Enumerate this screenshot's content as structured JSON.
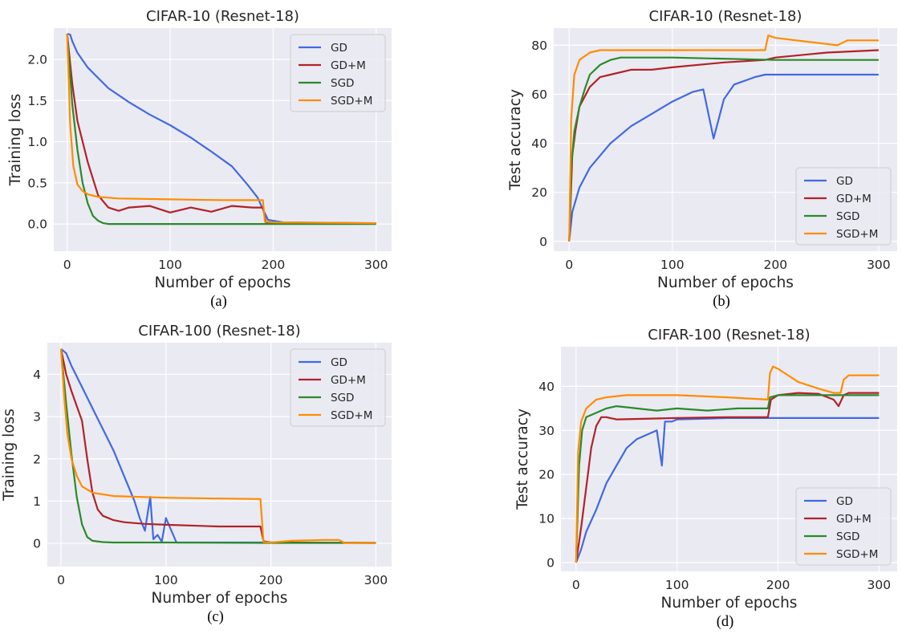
{
  "colors": {
    "GD": "#4169e1",
    "GD+M": "#b22228",
    "SGD": "#2a8a2a",
    "SGD+M": "#ff8c00",
    "background": "#eaeaf2",
    "grid": "#ffffff"
  },
  "chart_data": [
    {
      "id": "a",
      "type": "line",
      "title": "CIFAR-10 (Resnet-18)",
      "xlabel": "Number of epochs",
      "ylabel": "Training loss",
      "caption": "(a)",
      "xlim": [
        -13,
        315
      ],
      "ylim": [
        -0.33,
        2.38
      ],
      "xticks": [
        0,
        100,
        200,
        300
      ],
      "yticks": [
        0.0,
        0.5,
        1.0,
        1.5,
        2.0
      ],
      "ytick_labels": [
        "0.0",
        "0.5",
        "1.0",
        "1.5",
        "2.0"
      ],
      "grid": true,
      "legend_loc": "top-right",
      "series": [
        {
          "name": "GD",
          "x": [
            0,
            3,
            5,
            10,
            20,
            40,
            60,
            80,
            100,
            120,
            140,
            160,
            175,
            185,
            190,
            195,
            210,
            300
          ],
          "y": [
            2.31,
            2.3,
            2.22,
            2.08,
            1.9,
            1.65,
            1.48,
            1.33,
            1.2,
            1.05,
            0.88,
            0.7,
            0.48,
            0.32,
            0.18,
            0.05,
            0.02,
            0.01
          ]
        },
        {
          "name": "GD+M",
          "x": [
            0,
            5,
            10,
            20,
            30,
            40,
            50,
            60,
            80,
            100,
            120,
            140,
            160,
            180,
            190,
            193,
            200,
            300
          ],
          "y": [
            2.31,
            1.7,
            1.25,
            0.75,
            0.35,
            0.2,
            0.16,
            0.2,
            0.22,
            0.14,
            0.2,
            0.15,
            0.22,
            0.2,
            0.2,
            0.02,
            0.01,
            0.01
          ]
        },
        {
          "name": "SGD",
          "x": [
            0,
            5,
            10,
            15,
            20,
            25,
            30,
            35,
            40,
            50,
            100,
            200,
            300
          ],
          "y": [
            2.31,
            1.45,
            0.9,
            0.5,
            0.25,
            0.1,
            0.04,
            0.01,
            0.0,
            0.0,
            0.0,
            0.0,
            0.0
          ]
        },
        {
          "name": "SGD+M",
          "x": [
            0,
            3,
            6,
            10,
            15,
            20,
            30,
            50,
            100,
            150,
            190,
            192,
            200,
            300
          ],
          "y": [
            2.31,
            1.2,
            0.7,
            0.48,
            0.4,
            0.36,
            0.33,
            0.31,
            0.3,
            0.29,
            0.29,
            0.03,
            0.02,
            0.01
          ]
        }
      ]
    },
    {
      "id": "b",
      "type": "line",
      "title": "CIFAR-10 (Resnet-18)",
      "xlabel": "Number of epochs",
      "ylabel": "Test accuracy",
      "caption": "(b)",
      "xlim": [
        -15,
        318
      ],
      "ylim": [
        -4,
        87
      ],
      "xticks": [
        0,
        100,
        200,
        300
      ],
      "yticks": [
        0,
        20,
        40,
        60,
        80
      ],
      "ytick_labels": [
        "0",
        "20",
        "40",
        "60",
        "80"
      ],
      "grid": true,
      "legend_loc": "lower-right",
      "series": [
        {
          "name": "GD",
          "x": [
            0,
            3,
            10,
            20,
            40,
            60,
            80,
            100,
            120,
            130,
            140,
            150,
            160,
            180,
            190,
            200,
            300
          ],
          "y": [
            0,
            12,
            22,
            30,
            40,
            47,
            52,
            57,
            61,
            62,
            42,
            58,
            64,
            67,
            68,
            68,
            68
          ]
        },
        {
          "name": "GD+M",
          "x": [
            0,
            3,
            6,
            10,
            20,
            30,
            40,
            60,
            80,
            100,
            150,
            190,
            200,
            250,
            300
          ],
          "y": [
            0,
            35,
            45,
            55,
            63,
            67,
            68,
            70,
            70,
            71,
            73,
            74,
            75,
            77,
            78
          ]
        },
        {
          "name": "SGD",
          "x": [
            0,
            2,
            5,
            10,
            15,
            20,
            30,
            40,
            50,
            100,
            200,
            300
          ],
          "y": [
            0,
            30,
            45,
            55,
            62,
            68,
            72,
            74,
            75,
            75,
            74,
            74
          ]
        },
        {
          "name": "SGD+M",
          "x": [
            0,
            2,
            5,
            10,
            20,
            30,
            50,
            100,
            150,
            190,
            193,
            200,
            240,
            260,
            270,
            300
          ],
          "y": [
            0,
            50,
            68,
            74,
            77,
            78,
            78,
            78,
            78,
            78,
            84,
            83,
            81,
            80,
            82,
            82
          ]
        }
      ]
    },
    {
      "id": "c",
      "type": "line",
      "title": "CIFAR-100 (Resnet-18)",
      "xlabel": "Number of epochs",
      "ylabel": "Training loss",
      "caption": "(c)",
      "xlim": [
        -13,
        315
      ],
      "ylim": [
        -0.55,
        4.75
      ],
      "xticks": [
        0,
        100,
        200,
        300
      ],
      "yticks": [
        0,
        1,
        2,
        3,
        4
      ],
      "ytick_labels": [
        "0",
        "1",
        "2",
        "3",
        "4"
      ],
      "grid": true,
      "legend_loc": "top-right",
      "series": [
        {
          "name": "GD",
          "x": [
            0,
            5,
            10,
            20,
            30,
            40,
            50,
            60,
            70,
            75,
            80,
            85,
            88,
            92,
            96,
            100,
            110,
            200,
            300
          ],
          "y": [
            4.6,
            4.5,
            4.2,
            3.7,
            3.2,
            2.7,
            2.2,
            1.6,
            1.0,
            0.6,
            0.3,
            1.1,
            0.1,
            0.2,
            0.04,
            0.6,
            0.02,
            0.02,
            0.01
          ]
        },
        {
          "name": "GD+M",
          "x": [
            0,
            5,
            10,
            20,
            25,
            30,
            35,
            40,
            50,
            60,
            80,
            100,
            150,
            190,
            193,
            200,
            300
          ],
          "y": [
            4.6,
            4.0,
            3.6,
            2.9,
            2.0,
            1.2,
            0.8,
            0.65,
            0.55,
            0.5,
            0.46,
            0.44,
            0.4,
            0.4,
            0.05,
            0.02,
            0.01
          ]
        },
        {
          "name": "SGD",
          "x": [
            0,
            5,
            10,
            15,
            20,
            25,
            30,
            40,
            50,
            100,
            200,
            300
          ],
          "y": [
            4.6,
            3.3,
            2.1,
            1.1,
            0.45,
            0.15,
            0.06,
            0.03,
            0.02,
            0.02,
            0.01,
            0.01
          ]
        },
        {
          "name": "SGD+M",
          "x": [
            0,
            3,
            6,
            10,
            15,
            20,
            30,
            50,
            100,
            150,
            190,
            193,
            200,
            220,
            250,
            265,
            270,
            300
          ],
          "y": [
            4.6,
            3.5,
            2.6,
            2.0,
            1.6,
            1.35,
            1.2,
            1.12,
            1.08,
            1.06,
            1.05,
            0.03,
            0.02,
            0.06,
            0.08,
            0.08,
            0.01,
            0.01
          ]
        }
      ]
    },
    {
      "id": "d",
      "type": "line",
      "title": "CIFAR-100 (Resnet-18)",
      "xlabel": "Number of epochs",
      "ylabel": "Test accuracy",
      "caption": "(d)",
      "xlim": [
        -15,
        318
      ],
      "ylim": [
        -2,
        49
      ],
      "xticks": [
        0,
        100,
        200,
        300
      ],
      "yticks": [
        0,
        10,
        20,
        30,
        40
      ],
      "ytick_labels": [
        "0",
        "10",
        "20",
        "30",
        "40"
      ],
      "grid": true,
      "legend_loc": "lower-right",
      "series": [
        {
          "name": "GD",
          "x": [
            0,
            5,
            10,
            20,
            30,
            40,
            50,
            60,
            70,
            80,
            85,
            88,
            95,
            100,
            150,
            200,
            300
          ],
          "y": [
            0,
            3,
            7,
            12,
            18,
            22,
            26,
            28,
            29,
            30,
            22,
            32,
            32,
            32.5,
            32.8,
            32.8,
            32.8
          ]
        },
        {
          "name": "GD+M",
          "x": [
            0,
            5,
            10,
            15,
            20,
            25,
            30,
            40,
            100,
            150,
            190,
            193,
            200,
            220,
            240,
            255,
            260,
            265,
            270,
            300
          ],
          "y": [
            0,
            8,
            17,
            26,
            31,
            33,
            33,
            32.5,
            32.8,
            33,
            33,
            37,
            38,
            38.5,
            38.3,
            37,
            35.5,
            38,
            38.5,
            38.5
          ]
        },
        {
          "name": "SGD",
          "x": [
            0,
            3,
            6,
            10,
            20,
            30,
            40,
            60,
            80,
            100,
            130,
            160,
            190,
            192,
            200,
            250,
            300
          ],
          "y": [
            0,
            22,
            30,
            33,
            34,
            35,
            35.5,
            35,
            34.5,
            35,
            34.5,
            35,
            35,
            37.5,
            38,
            38,
            38
          ]
        },
        {
          "name": "SGD+M",
          "x": [
            0,
            2,
            5,
            10,
            20,
            30,
            50,
            100,
            150,
            190,
            192,
            195,
            200,
            220,
            240,
            255,
            262,
            265,
            270,
            300
          ],
          "y": [
            0,
            25,
            32,
            35,
            37,
            37.5,
            38,
            38,
            37.5,
            37,
            43,
            44.5,
            44,
            41,
            39.5,
            38.5,
            38.5,
            41.5,
            42.5,
            42.5
          ]
        }
      ]
    }
  ]
}
